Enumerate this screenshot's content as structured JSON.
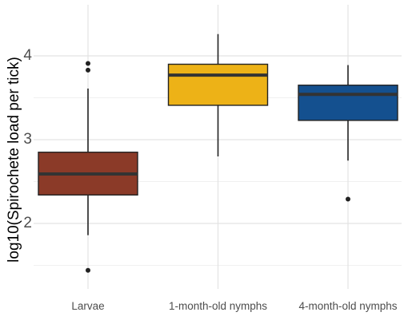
{
  "chart_data": {
    "type": "boxplot",
    "title": "",
    "xlabel": "",
    "ylabel": "log10(Spirochete load per tick)",
    "ylim": [
      1.1,
      4.55
    ],
    "yticks": [
      2,
      3,
      4
    ],
    "y_tick_labels": [
      "2",
      "3",
      "4"
    ],
    "grid": true,
    "legend": "none",
    "categories": [
      "Larvae",
      "1-month-old nymphs",
      "4-month-old nymphs"
    ],
    "boxes": [
      {
        "category": "Larvae",
        "whisker_low": 1.86,
        "q1": 2.34,
        "median": 2.59,
        "q3": 2.85,
        "whisker_high": 3.61,
        "outliers": [
          3.91,
          3.83,
          1.44
        ],
        "color": "#8B3A28"
      },
      {
        "category": "1-month-old nymphs",
        "whisker_low": 2.8,
        "q1": 3.41,
        "median": 3.77,
        "q3": 3.9,
        "whisker_high": 4.26,
        "outliers": [],
        "color": "#EDB217"
      },
      {
        "category": "4-month-old nymphs",
        "whisker_low": 2.75,
        "q1": 3.23,
        "median": 3.54,
        "q3": 3.65,
        "whisker_high": 3.89,
        "outliers": [
          2.29
        ],
        "color": "#14508F"
      }
    ]
  }
}
